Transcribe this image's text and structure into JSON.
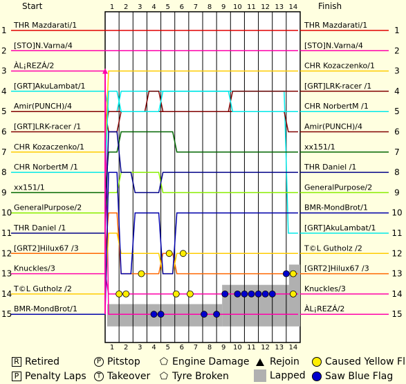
{
  "chart_data": {
    "type": "line",
    "title": "",
    "start_label": "Start",
    "finish_label": "Finish",
    "laps": [
      1,
      2,
      3,
      4,
      5,
      6,
      7,
      8,
      9,
      10,
      11,
      12,
      13,
      14
    ],
    "positions": [
      1,
      2,
      3,
      4,
      5,
      6,
      7,
      8,
      9,
      10,
      11,
      12,
      13,
      14,
      15
    ],
    "start_grid": [
      "THR Mazdarati/1",
      "[STO]N.Varna/4",
      "ÀL¡REZÁ/2",
      "[GRT]AkuLambat/1",
      "Amir(PUNCH)/4",
      "[GRT]LRK-racer /1",
      "CHR Kozaczenko/1",
      "CHR NorbertM /1",
      "xx151/1",
      "GeneralPurpose/2",
      "THR Daniel /1",
      "[GRT2]Hilux67 /3",
      "Knuckles/3",
      "T©L Gutholz /2",
      "BMR-MondBrot/1"
    ],
    "finish_order": [
      "THR Mazdarati/1",
      "[STO]N.Varna/4",
      "CHR Kozaczenko/1",
      "[GRT]LRK-racer /1",
      "CHR NorbertM /1",
      "Amir(PUNCH)/4",
      "xx151/1",
      "THR Daniel /1",
      "GeneralPurpose/2",
      "BMR-MondBrot/1",
      "[GRT]AkuLambat/1",
      "T©L Gutholz /2",
      "[GRT2]Hilux67 /3",
      "Knuckles/3",
      "ÀL¡REZÁ/2"
    ],
    "series": [
      {
        "name": "THR Mazdarati/1",
        "color": "#e00000",
        "positions": [
          1,
          1,
          1,
          1,
          1,
          1,
          1,
          1,
          1,
          1,
          1,
          1,
          1,
          1,
          1
        ]
      },
      {
        "name": "[STO]N.Varna/4",
        "color": "#ff00aa",
        "positions": [
          2,
          2,
          2,
          2,
          2,
          2,
          2,
          2,
          2,
          2,
          2,
          2,
          2,
          2,
          2
        ]
      },
      {
        "name": "ÀL¡REZÁ/2",
        "color": "#ff00aa",
        "positions": [
          3,
          15,
          15,
          15,
          15,
          15,
          15,
          15,
          15,
          15,
          15,
          15,
          15,
          15,
          15
        ]
      },
      {
        "name": "[GRT]AkuLambat/1",
        "color": "#00e8e8",
        "positions": [
          4,
          5,
          4,
          4,
          4,
          4,
          4,
          4,
          4,
          4,
          4,
          4,
          4,
          4,
          11
        ]
      },
      {
        "name": "Amir(PUNCH)/4",
        "color": "#800000",
        "positions": [
          5,
          6,
          5,
          5,
          4,
          5,
          5,
          5,
          5,
          5,
          5,
          5,
          5,
          5,
          6
        ]
      },
      {
        "name": "[GRT]LRK-racer /1",
        "color": "#800000",
        "positions": [
          6,
          5,
          5,
          5,
          5,
          5,
          5,
          5,
          5,
          5,
          4,
          4,
          4,
          4,
          4
        ]
      },
      {
        "name": "CHR Kozaczenko/1",
        "color": "#ffcc00",
        "positions": [
          7,
          3,
          3,
          3,
          3,
          3,
          3,
          3,
          3,
          3,
          3,
          3,
          3,
          3,
          3
        ]
      },
      {
        "name": "CHR NorbertM /1",
        "color": "#00e8e8",
        "positions": [
          8,
          4,
          5,
          5,
          5,
          4,
          4,
          4,
          4,
          4,
          5,
          5,
          5,
          5,
          5
        ]
      },
      {
        "name": "xx151/1",
        "color": "#006600",
        "positions": [
          9,
          7,
          6,
          6,
          6,
          6,
          7,
          7,
          7,
          7,
          7,
          7,
          7,
          7,
          7
        ]
      },
      {
        "name": "GeneralPurpose/2",
        "color": "#88ee00",
        "positions": [
          10,
          9,
          8,
          8,
          8,
          9,
          9,
          9,
          9,
          9,
          9,
          9,
          9,
          9,
          9
        ]
      },
      {
        "name": "THR Daniel /1",
        "color": "#000088",
        "positions": [
          11,
          6,
          8,
          9,
          9,
          8,
          8,
          8,
          8,
          8,
          8,
          8,
          8,
          8,
          8
        ]
      },
      {
        "name": "[GRT2]Hilux67 /3",
        "color": "#ff6600",
        "positions": [
          12,
          10,
          13,
          13,
          13,
          12,
          13,
          13,
          13,
          13,
          13,
          13,
          13,
          13,
          13
        ]
      },
      {
        "name": "Knuckles/3",
        "color": "#ff00aa",
        "positions": [
          13,
          14,
          14,
          14,
          14,
          14,
          14,
          14,
          14,
          14,
          14,
          14,
          14,
          14,
          14
        ]
      },
      {
        "name": "T©L Gutholz /2",
        "color": "#ffcc00",
        "positions": [
          14,
          11,
          12,
          12,
          12,
          13,
          12,
          12,
          12,
          12,
          12,
          12,
          12,
          12,
          12
        ]
      },
      {
        "name": "BMR-MondBrot/1",
        "color": "#0000aa",
        "positions": [
          15,
          8,
          13,
          10,
          10,
          13,
          10,
          10,
          10,
          10,
          10,
          10,
          10,
          10,
          10
        ]
      }
    ],
    "lapped_region": {
      "note": "grey shading = Lapped"
    },
    "yellow_flags": [
      {
        "lap": 1.0,
        "position": 14
      },
      {
        "lap": 1.5,
        "position": 14
      },
      {
        "lap": 2.6,
        "position": 13
      },
      {
        "lap": 4.6,
        "position": 12
      },
      {
        "lap": 5.1,
        "position": 14
      },
      {
        "lap": 5.6,
        "position": 12
      },
      {
        "lap": 6.1,
        "position": 14
      },
      {
        "lap": 13.5,
        "position": 13
      },
      {
        "lap": 13.5,
        "position": 14
      }
    ],
    "blue_flags": [
      {
        "lap": 3.5,
        "position": 15
      },
      {
        "lap": 4.0,
        "position": 15
      },
      {
        "lap": 7.1,
        "position": 15
      },
      {
        "lap": 8.0,
        "position": 15
      },
      {
        "lap": 8.6,
        "position": 14
      },
      {
        "lap": 9.5,
        "position": 14
      },
      {
        "lap": 10.0,
        "position": 14
      },
      {
        "lap": 10.5,
        "position": 14
      },
      {
        "lap": 11.0,
        "position": 14
      },
      {
        "lap": 11.5,
        "position": 14
      },
      {
        "lap": 12.0,
        "position": 14
      },
      {
        "lap": 13.0,
        "position": 13
      }
    ]
  },
  "legend": {
    "retired": {
      "symbol": "R",
      "label": "Retired"
    },
    "penalty": {
      "symbol": "P",
      "label": "Penalty Laps"
    },
    "pitstop": {
      "symbol": "P",
      "label": "Pitstop"
    },
    "takeover": {
      "symbol": "T",
      "label": "Takeover"
    },
    "engine": {
      "symbol": "E",
      "label": "Engine Damage"
    },
    "tyre": {
      "symbol": "T",
      "label": "Tyre Broken"
    },
    "rejoin": {
      "label": "Rejoin"
    },
    "lapped": {
      "label": "Lapped"
    },
    "yellow": {
      "label": "Caused Yellow Flag"
    },
    "blue": {
      "label": "Saw Blue Flag"
    }
  }
}
